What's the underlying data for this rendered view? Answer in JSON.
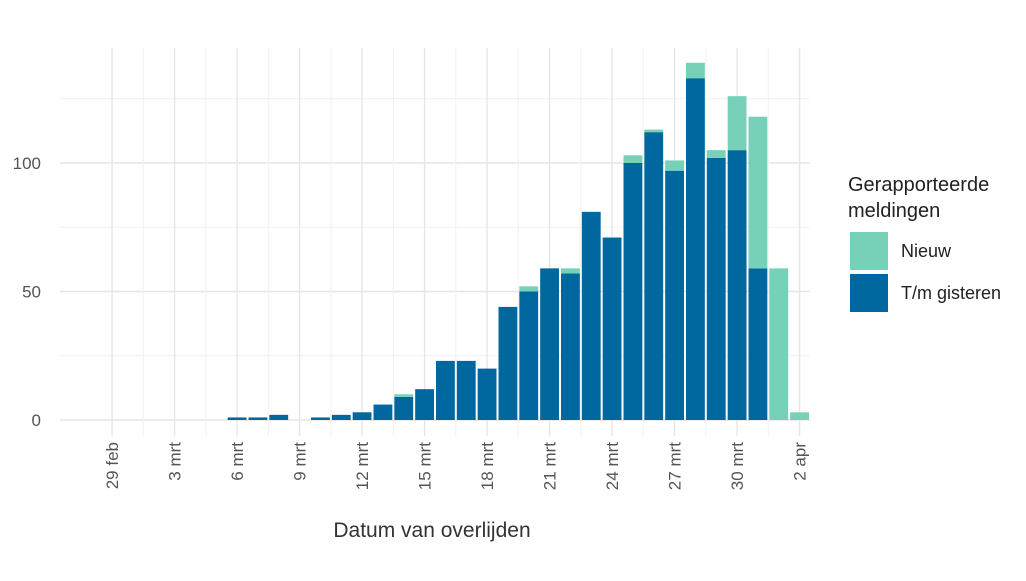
{
  "chart_data": {
    "type": "bar",
    "stacked": true,
    "title": "",
    "xlabel": "Datum van overlijden",
    "ylabel": "",
    "ylim": [
      0,
      145
    ],
    "yticks": [
      0,
      50,
      100
    ],
    "grid": true,
    "legend_position": "right",
    "legend_title_lines": [
      "Gerapporteerde",
      "meldingen"
    ],
    "x_start": "2020-02-27",
    "xtick_labels": [
      "29 feb",
      "3 mrt",
      "6 mrt",
      "9 mrt",
      "12 mrt",
      "15 mrt",
      "18 mrt",
      "21 mrt",
      "24 mrt",
      "27 mrt",
      "30 mrt",
      "2 apr"
    ],
    "categories": [
      "27 feb",
      "28 feb",
      "29 feb",
      "1 mrt",
      "2 mrt",
      "3 mrt",
      "4 mrt",
      "5 mrt",
      "6 mrt",
      "7 mrt",
      "8 mrt",
      "9 mrt",
      "10 mrt",
      "11 mrt",
      "12 mrt",
      "13 mrt",
      "14 mrt",
      "15 mrt",
      "16 mrt",
      "17 mrt",
      "18 mrt",
      "19 mrt",
      "20 mrt",
      "21 mrt",
      "22 mrt",
      "23 mrt",
      "24 mrt",
      "25 mrt",
      "26 mrt",
      "27 mrt",
      "28 mrt",
      "29 mrt",
      "30 mrt",
      "31 mrt",
      "1 apr",
      "2 apr"
    ],
    "series": [
      {
        "name": "T/m gisteren",
        "color": "#00689f",
        "values": [
          0,
          0,
          0,
          0,
          0,
          0,
          0,
          0,
          1,
          1,
          2,
          0,
          1,
          2,
          3,
          6,
          9,
          12,
          23,
          23,
          20,
          44,
          50,
          59,
          57,
          81,
          71,
          100,
          112,
          97,
          133,
          102,
          105,
          59,
          0,
          0
        ]
      },
      {
        "name": "Nieuw",
        "color": "#76d1b8",
        "values": [
          0,
          0,
          0,
          0,
          0,
          0,
          0,
          0,
          0,
          0,
          0,
          0,
          0,
          0,
          0,
          0,
          1,
          0,
          0,
          0,
          0,
          0,
          2,
          0,
          2,
          0,
          0,
          3,
          1,
          4,
          6,
          3,
          21,
          59,
          59,
          3
        ]
      }
    ]
  }
}
